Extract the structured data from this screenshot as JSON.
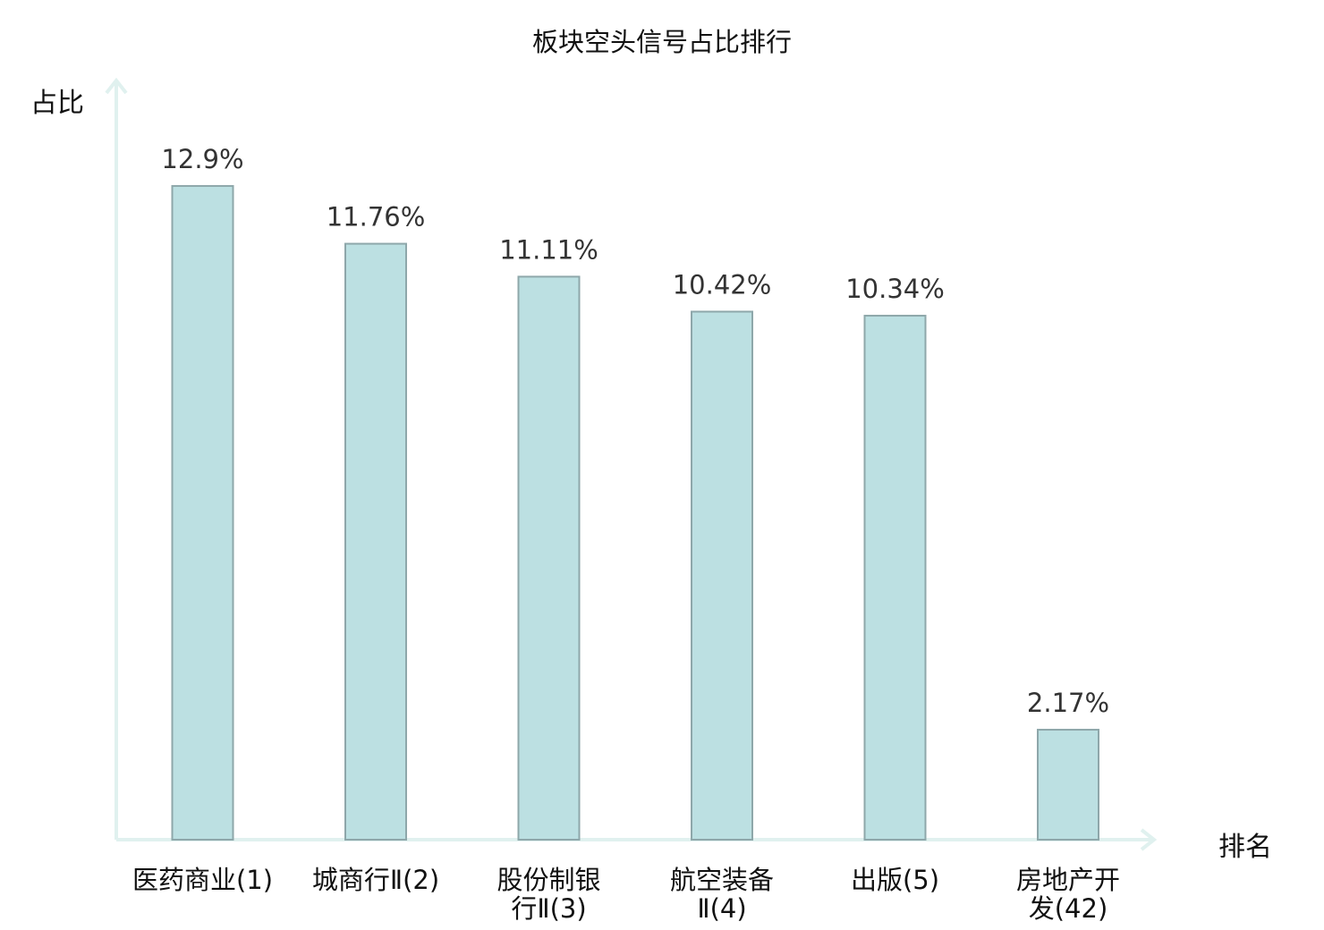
{
  "chart_data": {
    "type": "bar",
    "title": "板块空头信号占比排行",
    "ylabel": "占比",
    "xlabel": "排名",
    "categories": [
      {
        "lines": [
          "医药商业(1)"
        ],
        "highlight": false
      },
      {
        "lines": [
          "城商行Ⅱ(2)"
        ],
        "highlight": false
      },
      {
        "lines": [
          "股份制银",
          "行Ⅱ(3)"
        ],
        "highlight": false
      },
      {
        "lines": [
          "航空装备",
          "Ⅱ(4)"
        ],
        "highlight": false
      },
      {
        "lines": [
          "出版(5)"
        ],
        "highlight": false
      },
      {
        "lines": [
          "房地产开",
          "发(42)"
        ],
        "highlight": true
      }
    ],
    "values": [
      12.9,
      11.76,
      11.11,
      10.42,
      10.34,
      2.17
    ],
    "value_labels": [
      "12.9%",
      "11.76%",
      "11.11%",
      "10.42%",
      "10.34%",
      "2.17%"
    ],
    "ylim": [
      0,
      15
    ],
    "grid": false,
    "colors": {
      "bar_fill": "#bce0e2",
      "bar_stroke": "#8ea7aa",
      "axis": "#e0f1ef",
      "highlight_text": "#e60000"
    }
  }
}
